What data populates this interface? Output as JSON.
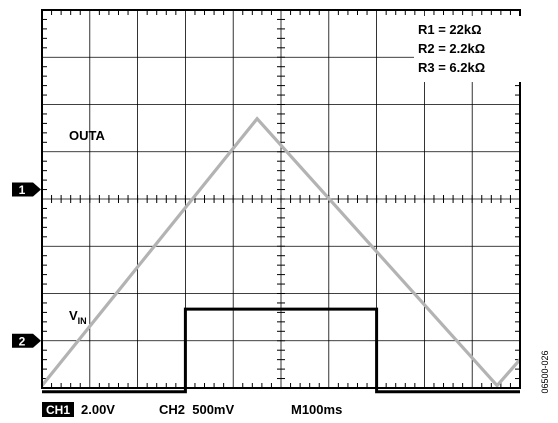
{
  "chart_data": {
    "type": "line",
    "title": "",
    "grid": true,
    "divisions": {
      "x": 10,
      "y": 8
    },
    "x_per_division_ms": 100,
    "series": [
      {
        "name": "OUTA",
        "channel": 1,
        "color": "#000000",
        "x_div": [
          0,
          3,
          3,
          7,
          7,
          10
        ],
        "y_div": [
          -0.08,
          -0.08,
          1.67,
          1.67,
          -0.08,
          -0.08
        ]
      },
      {
        "name": "VIN",
        "channel": 2,
        "color": "#b3b3b3",
        "x_div": [
          0,
          4.5,
          9.52,
          10
        ],
        "y_div": [
          0.05,
          5.7,
          0.05,
          0.6
        ]
      }
    ],
    "channel_markers": [
      {
        "label": "1",
        "y_div": 4.2
      },
      {
        "label": "2",
        "y_div": 1.0
      }
    ]
  },
  "annotations": {
    "r1": "R1 = 22kΩ",
    "r2": "R2 = 2.2kΩ",
    "r3": "R3 = 6.2kΩ",
    "outa": "OUTA",
    "vin_main": "V",
    "vin_sub": "IN"
  },
  "status": {
    "ch1_badge": "CH1",
    "ch1_scale": "2.00V",
    "ch2": "CH2  500mV",
    "time": "M100ms"
  },
  "figure_id": "06500-026"
}
